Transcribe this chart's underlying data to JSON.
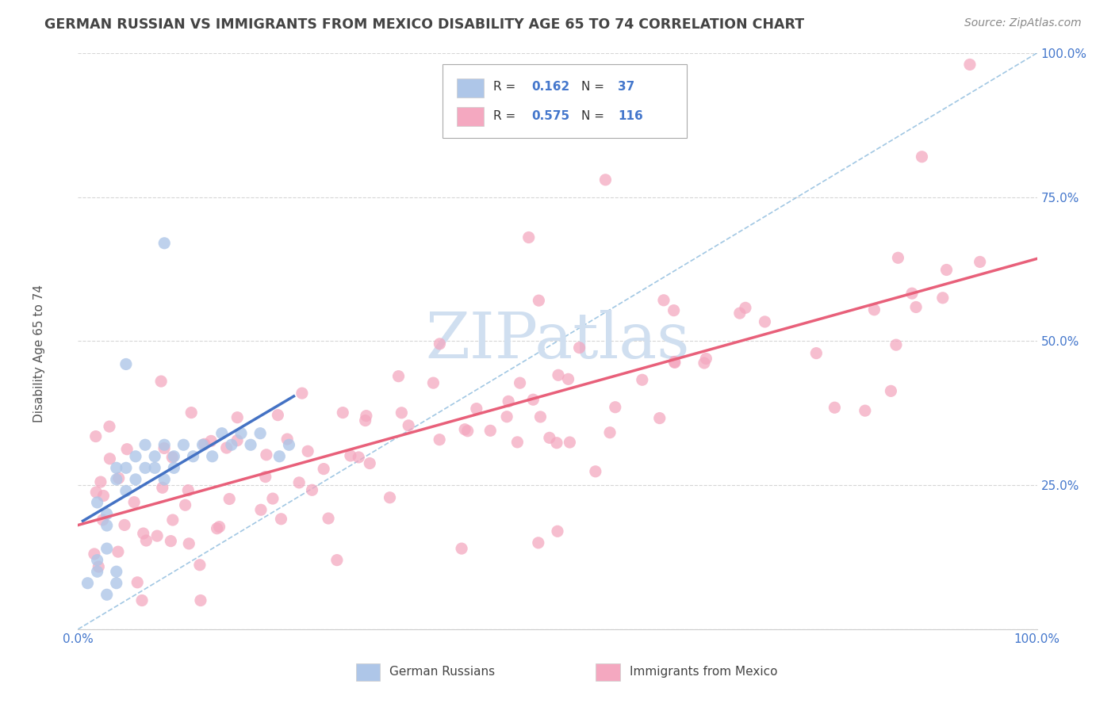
{
  "title": "GERMAN RUSSIAN VS IMMIGRANTS FROM MEXICO DISABILITY AGE 65 TO 74 CORRELATION CHART",
  "source": "Source: ZipAtlas.com",
  "ylabel": "Disability Age 65 to 74",
  "blue_scatter_color": "#aec6e8",
  "pink_scatter_color": "#f4a8c0",
  "blue_line_color": "#4472c4",
  "pink_line_color": "#e8607a",
  "diag_line_color": "#7ab0d8",
  "background_color": "#ffffff",
  "grid_color": "#cccccc",
  "title_color": "#444444",
  "axis_label_color": "#4477cc",
  "watermark_text": "ZIPatlas",
  "watermark_color": "#d0dff0",
  "blue_R": 0.162,
  "blue_N": 37,
  "pink_R": 0.575,
  "pink_N": 116,
  "legend_label_blue": "German Russians",
  "legend_label_pink": "Immigrants from Mexico"
}
